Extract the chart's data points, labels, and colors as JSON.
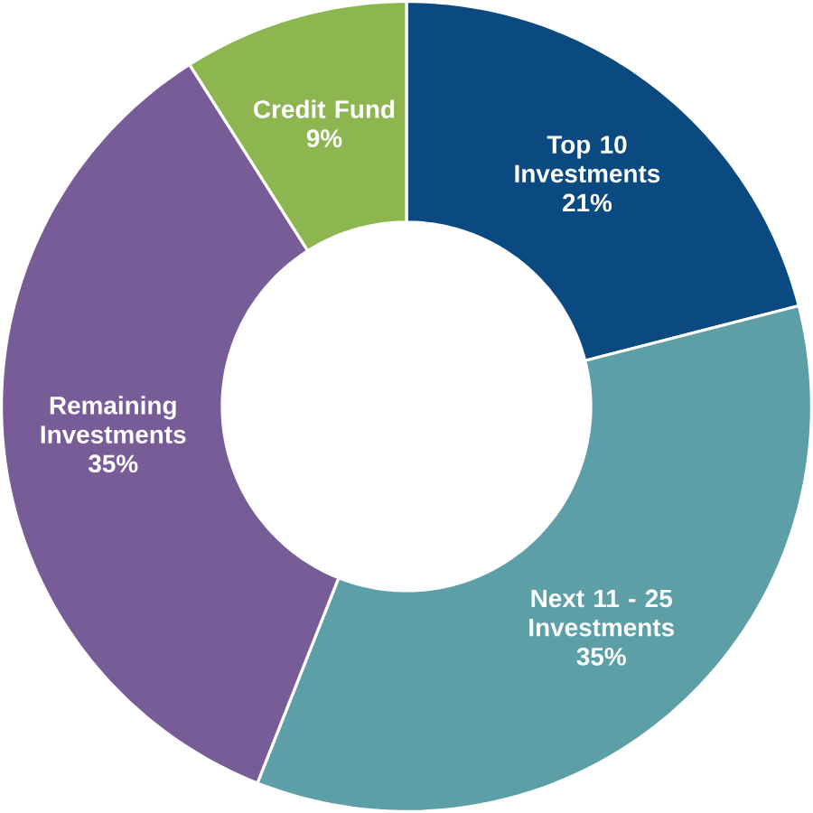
{
  "chart_data": {
    "type": "donut",
    "categories": [
      "Top 10 Investments",
      "Next 11 - 25 Investments",
      "Remaining Investments",
      "Credit Fund"
    ],
    "values": [
      21,
      35,
      35,
      9
    ],
    "value_labels": [
      "21%",
      "35%",
      "35%",
      "9%"
    ],
    "colors": [
      "#0b4a80",
      "#5c9fa6",
      "#775c98",
      "#8db650"
    ]
  }
}
